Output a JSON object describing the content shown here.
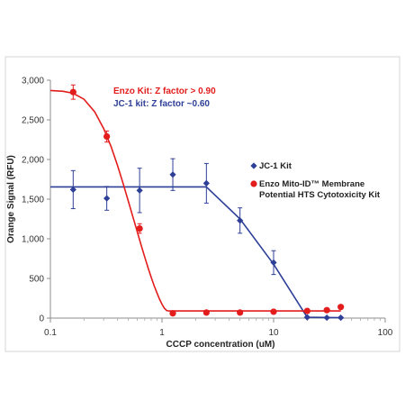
{
  "chart_data": {
    "type": "scatter",
    "xlabel": "CCCP concentration (uM)",
    "ylabel": "Orange Signal (RFU)",
    "xscale": "log",
    "xlim": [
      0.1,
      100
    ],
    "ylim": [
      0,
      3000
    ],
    "x_ticks": [
      0.1,
      1,
      10,
      100
    ],
    "x_tick_labels": [
      "0.1",
      "1",
      "10",
      "100"
    ],
    "y_ticks": [
      0,
      500,
      1000,
      1500,
      2000,
      2500,
      3000
    ],
    "y_tick_labels": [
      "0",
      "500",
      "1,000",
      "1,500",
      "2,000",
      "2,500",
      "3,000"
    ],
    "grid": false,
    "legend_position": "right",
    "annotations": [
      {
        "text": "Enzo Kit: Z factor > 0.90",
        "color": "#e31c1c"
      },
      {
        "text": "JC-1 kit:  Z factor  ~0.60",
        "color": "#2e3f98"
      }
    ],
    "series": [
      {
        "name": "JC-1  Kit",
        "color": "#2e3f98",
        "marker": "diamond",
        "x": [
          0.16,
          0.32,
          0.63,
          1.25,
          2.5,
          5,
          10,
          20,
          30,
          40
        ],
        "y": [
          1620,
          1510,
          1610,
          1810,
          1700,
          1230,
          700,
          10,
          5,
          5
        ],
        "err": [
          240,
          150,
          280,
          200,
          250,
          160,
          150,
          10,
          10,
          10
        ],
        "fit_x": [
          0.1,
          2.5,
          5,
          10,
          20,
          40
        ],
        "fit_y": [
          1655,
          1655,
          1250,
          680,
          10,
          5
        ]
      },
      {
        "name": "Enzo Mito-ID™ Membrane Potential HTS Cytotoxicity Kit",
        "legend_lines": [
          "Enzo Mito-ID™ Membrane",
          "Potential HTS Cytotoxicity Kit"
        ],
        "color": "#e31c1c",
        "marker": "circle",
        "x": [
          0.16,
          0.32,
          0.63,
          1.25,
          2.5,
          5,
          10,
          20,
          30,
          40
        ],
        "y": [
          2850,
          2290,
          1130,
          60,
          70,
          70,
          80,
          90,
          100,
          140
        ],
        "err": [
          90,
          70,
          60,
          0,
          0,
          0,
          0,
          0,
          0,
          0
        ],
        "fit_x": [
          0.1,
          0.13,
          0.16,
          0.2,
          0.25,
          0.3,
          0.35,
          0.4,
          0.45,
          0.5,
          0.55,
          0.6,
          0.65,
          0.7,
          0.75,
          0.8,
          0.85,
          0.9,
          0.95,
          1.0,
          1.05,
          1.1,
          1.15,
          1.2,
          2,
          5,
          10,
          20,
          40
        ],
        "fit_y": [
          2870,
          2860,
          2835,
          2760,
          2600,
          2390,
          2160,
          1920,
          1690,
          1470,
          1270,
          1090,
          920,
          770,
          635,
          515,
          410,
          320,
          240,
          175,
          125,
          95,
          90,
          90,
          90,
          90,
          90,
          90,
          90
        ]
      }
    ]
  }
}
